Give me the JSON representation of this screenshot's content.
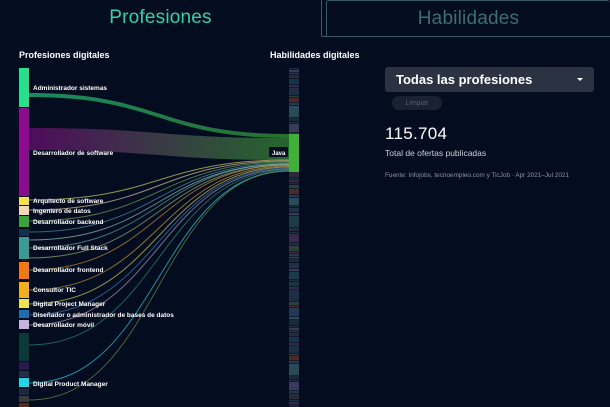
{
  "tabs": [
    {
      "label": "Profesiones",
      "active": true
    },
    {
      "label": "Habilidades",
      "active": false
    }
  ],
  "left_column_title": "Profesiones digitales",
  "right_column_title": "Habilidades digitales",
  "professions": [
    {
      "label": "Administrador sistemas",
      "color": "#26e08c"
    },
    {
      "label": "Desarrollador de software",
      "color": "#8b0c8e"
    },
    {
      "label": "Arquitecto de software",
      "color": "#f4e24a"
    },
    {
      "label": "Ingeniero de datos",
      "color": "#f6d7b4"
    },
    {
      "label": "Desarrollador backend",
      "color": "#3aa23c"
    },
    {
      "label": "Desarrollador Full Stack",
      "color": "#3a9a96"
    },
    {
      "label": "Desarrollador frontend",
      "color": "#f07a12"
    },
    {
      "label": "Consultor TIC",
      "color": "#f2b01e"
    },
    {
      "label": "Digital Project Manager",
      "color": "#f4e44c"
    },
    {
      "label": "Diseñador o administrador de bases de datos",
      "color": "#1e6fb0"
    },
    {
      "label": "Desarrollador móvil",
      "color": "#c9b4dc"
    },
    {
      "label": "Digital Product Manager",
      "color": "#22d6ea"
    }
  ],
  "highlighted_skill": {
    "label": "Java",
    "color": "#3fb13a"
  },
  "filter": {
    "selected": "Todas las profesiones",
    "clear_label": "Limpiar"
  },
  "summary": {
    "total": "115.704",
    "caption": "Total de ofertas publicadas"
  },
  "source_note": "Fuente: Infojobs, tecnoempleo.com y TicJob · Apr 2021–Jul 2021"
}
